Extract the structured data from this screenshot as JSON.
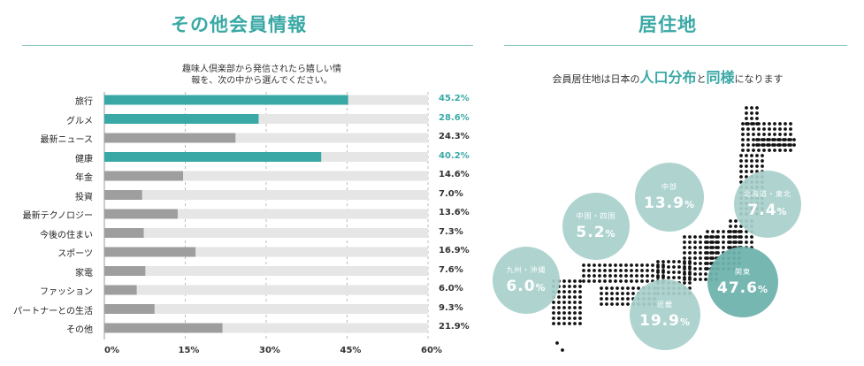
{
  "left": {
    "title": "その他会員情報",
    "question_line1": "趣味人倶楽部から発信されたら嬉しい情",
    "question_line2": "報を、次の中から選んでください。"
  },
  "right": {
    "title": "居住地",
    "subtitle_pre": "会員居住地は日本の",
    "subtitle_big1": "人口分布",
    "subtitle_mid": "と",
    "subtitle_big2": "同様",
    "subtitle_post": "になります"
  },
  "chart_data": {
    "type": "bar",
    "orientation": "horizontal",
    "categories": [
      "旅行",
      "グルメ",
      "最新ニュース",
      "健康",
      "年金",
      "投資",
      "最新テクノロジー",
      "今後の住まい",
      "スポーツ",
      "家電",
      "ファッション",
      "パートナーとの生活",
      "その他"
    ],
    "values": [
      45.2,
      28.6,
      24.3,
      40.2,
      14.6,
      7.0,
      13.6,
      7.3,
      16.9,
      7.6,
      6.0,
      9.3,
      21.9
    ],
    "value_labels": [
      "45.2%",
      "28.6%",
      "24.3%",
      "40.2%",
      "14.6%",
      "7.0%",
      "13.6%",
      "7.3%",
      "16.9%",
      "7.6%",
      "6.0%",
      "9.3%",
      "21.9%"
    ],
    "highlighted": [
      "旅行",
      "グルメ",
      "健康"
    ],
    "xlim": [
      0,
      60
    ],
    "ticks": [
      "0%",
      "15%",
      "30%",
      "45%",
      "60%"
    ],
    "grid": true,
    "colors": {
      "highlight": "#3aa9a6",
      "normal": "#9e9e9e",
      "track": "#e6e6e6"
    }
  },
  "regions": [
    {
      "name": "北海道・東北",
      "value": "7.4",
      "unit": "%"
    },
    {
      "name": "中部",
      "value": "13.9",
      "unit": "%"
    },
    {
      "name": "中国・四国",
      "value": "5.2",
      "unit": "%"
    },
    {
      "name": "九州・沖縄",
      "value": "6.0",
      "unit": "%"
    },
    {
      "name": "関東",
      "value": "47.6",
      "unit": "%"
    },
    {
      "name": "近畿",
      "value": "19.9",
      "unit": "%"
    }
  ],
  "colors": {
    "accent": "#3aa9a6",
    "circle_light": "#a9d1cc",
    "circle_dark": "#6fb3ad",
    "map_dot": "#111111"
  }
}
